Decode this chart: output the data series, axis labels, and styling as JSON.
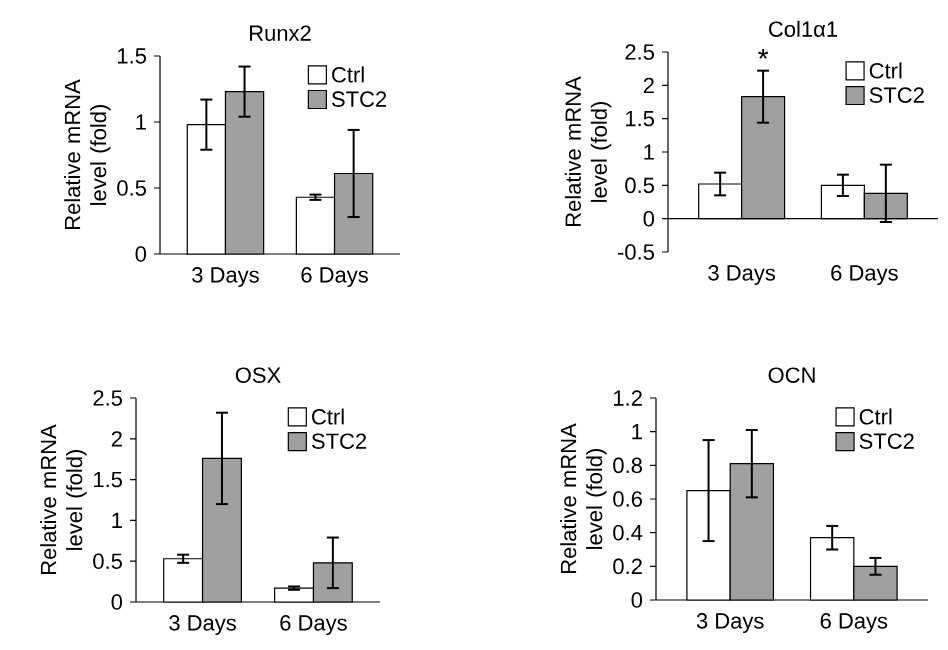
{
  "chart_data": [
    {
      "type": "bar",
      "title": "Runx2",
      "ylabel": "Relative mRNA level (fold)",
      "categories": [
        "3 Days",
        "6 Days"
      ],
      "series": [
        {
          "name": "Ctrl",
          "color": "#ffffff",
          "values": [
            0.98,
            0.43
          ],
          "errors": [
            0.19,
            0.02
          ]
        },
        {
          "name": "STC2",
          "color": "#a0a0a0",
          "values": [
            1.23,
            0.61
          ],
          "errors": [
            0.19,
            0.33
          ]
        }
      ],
      "ylim": [
        0,
        1.5
      ],
      "yticks": [
        0,
        0.5,
        1,
        1.5
      ],
      "legend": "top right"
    },
    {
      "type": "bar",
      "title": "Col1α1",
      "ylabel": "Relative mRNA level (fold)",
      "categories": [
        "3 Days",
        "6 Days"
      ],
      "series": [
        {
          "name": "Ctrl",
          "color": "#ffffff",
          "values": [
            0.52,
            0.5
          ],
          "errors": [
            0.17,
            0.16
          ]
        },
        {
          "name": "STC2",
          "color": "#a0a0a0",
          "values": [
            1.83,
            0.38
          ],
          "errors": [
            0.39,
            0.43
          ]
        }
      ],
      "ylim": [
        -0.5,
        2.5
      ],
      "yticks": [
        -0.5,
        0,
        0.5,
        1,
        1.5,
        2,
        2.5
      ],
      "legend": "top right",
      "annotations": [
        "*"
      ]
    },
    {
      "type": "bar",
      "title": "OSX",
      "ylabel": "Relative mRNA level (fold)",
      "categories": [
        "3 Days",
        "6 Days"
      ],
      "series": [
        {
          "name": "Ctrl",
          "color": "#ffffff",
          "values": [
            0.53,
            0.17
          ],
          "errors": [
            0.05,
            0.02
          ]
        },
        {
          "name": "STC2",
          "color": "#a0a0a0",
          "values": [
            1.76,
            0.48
          ],
          "errors": [
            0.56,
            0.31
          ]
        }
      ],
      "ylim": [
        0,
        2.5
      ],
      "yticks": [
        0,
        0.5,
        1,
        1.5,
        2,
        2.5
      ],
      "legend": "top right"
    },
    {
      "type": "bar",
      "title": "OCN",
      "ylabel": "Relative mRNA level (fold)",
      "categories": [
        "3 Days",
        "6 Days"
      ],
      "series": [
        {
          "name": "Ctrl",
          "color": "#ffffff",
          "values": [
            0.65,
            0.37
          ],
          "errors": [
            0.3,
            0.07
          ]
        },
        {
          "name": "STC2",
          "color": "#a0a0a0",
          "values": [
            0.81,
            0.2
          ],
          "errors": [
            0.2,
            0.05
          ]
        }
      ],
      "ylim": [
        0,
        1.2
      ],
      "yticks": [
        0,
        0.2,
        0.4,
        0.6,
        0.8,
        1,
        1.2
      ],
      "legend": "top right"
    }
  ]
}
